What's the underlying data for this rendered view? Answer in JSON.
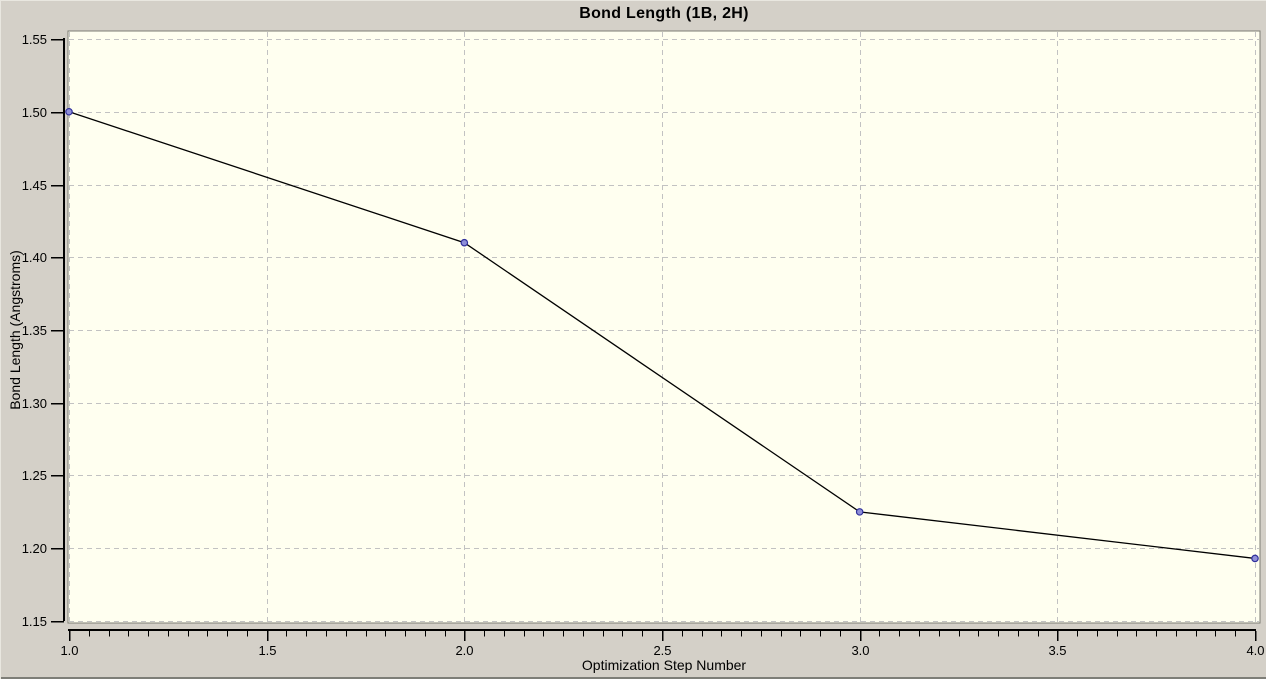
{
  "window": {
    "background": "#d4d0c8",
    "edge_dark": "#7e7e78",
    "edge_light": "#e9e7e0"
  },
  "chart_data": {
    "type": "line",
    "title": "Bond Length (1B, 2H)",
    "xlabel": "Optimization Step Number",
    "ylabel": "Bond Length (Angstroms)",
    "x": [
      1.0,
      2.0,
      3.0,
      4.0
    ],
    "y": [
      1.5,
      1.41,
      1.225,
      1.193
    ],
    "xlim": [
      1.0,
      4.0
    ],
    "ylim": [
      1.15,
      1.55
    ],
    "x_ticks": [
      {
        "value": 1.0,
        "label": "1.0"
      },
      {
        "value": 1.5,
        "label": "1.5"
      },
      {
        "value": 2.0,
        "label": "2.0"
      },
      {
        "value": 2.5,
        "label": "2.5"
      },
      {
        "value": 3.0,
        "label": "3.0"
      },
      {
        "value": 3.5,
        "label": "3.5"
      },
      {
        "value": 4.0,
        "label": "4.0"
      }
    ],
    "x_minor_step": 0.05,
    "y_ticks": [
      {
        "value": 1.15,
        "label": "1.15"
      },
      {
        "value": 1.2,
        "label": "1.20"
      },
      {
        "value": 1.25,
        "label": "1.25"
      },
      {
        "value": 1.3,
        "label": "1.30"
      },
      {
        "value": 1.35,
        "label": "1.35"
      },
      {
        "value": 1.4,
        "label": "1.40"
      },
      {
        "value": 1.45,
        "label": "1.45"
      },
      {
        "value": 1.5,
        "label": "1.50"
      },
      {
        "value": 1.55,
        "label": "1.55"
      }
    ],
    "grid": "dashed",
    "legend": "none",
    "colors": {
      "plot_background": "#fffff0",
      "grid": "#c2c2c2",
      "line": "#000000",
      "marker_fill": "#8f8fd8",
      "marker_stroke": "#30309c",
      "axis": "#000000",
      "plot_border": "#7c7c74",
      "text": "#000000"
    }
  }
}
